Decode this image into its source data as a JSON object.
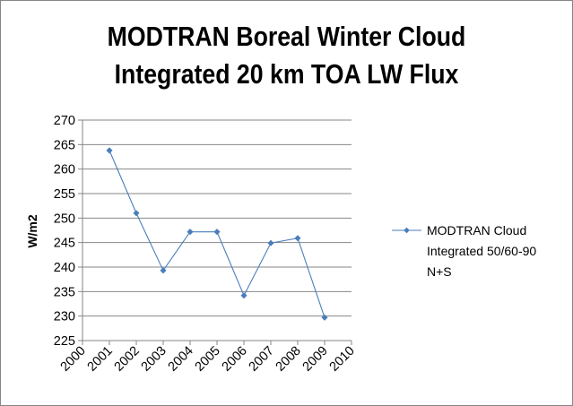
{
  "chart_data": {
    "type": "line",
    "title_lines": [
      "MODTRAN Boreal Winter Cloud",
      "Integrated 20 km TOA LW Flux"
    ],
    "xlabel": "",
    "ylabel": "W/m2",
    "x_ticks": [
      "2000",
      "2001",
      "2002",
      "2003",
      "2004",
      "2005",
      "2006",
      "2007",
      "2008",
      "2009",
      "2010"
    ],
    "xlim": [
      2000,
      2010
    ],
    "ylim": [
      225,
      270
    ],
    "y_ticks": [
      225,
      230,
      235,
      240,
      245,
      250,
      255,
      260,
      265,
      270
    ],
    "grid": "horizontal",
    "legend_position": "right",
    "series": [
      {
        "name_lines": [
          "MODTRAN Cloud",
          "Integrated 50/60-90",
          "N+S"
        ],
        "color": "#4a7ebb",
        "x": [
          2001,
          2002,
          2003,
          2004,
          2005,
          2006,
          2007,
          2008,
          2009
        ],
        "values": [
          263.8,
          251.0,
          239.3,
          247.2,
          247.2,
          234.2,
          244.9,
          245.9,
          229.7
        ]
      }
    ]
  }
}
